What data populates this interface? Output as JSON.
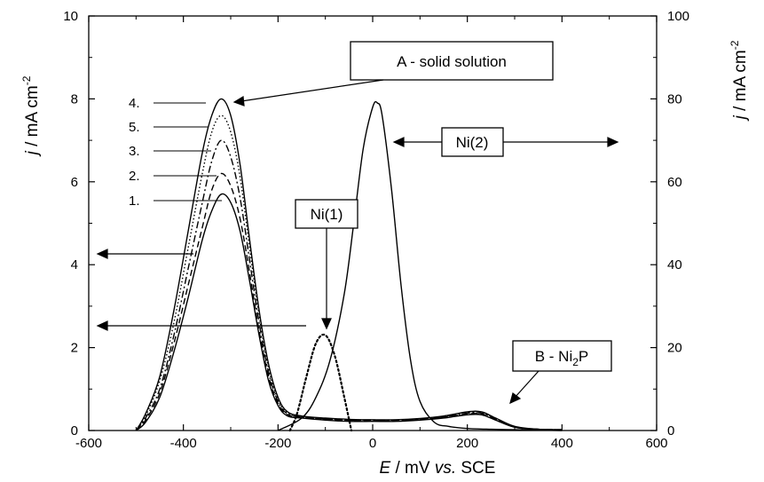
{
  "chart_data": {
    "type": "line",
    "xlabel_parts": [
      "E",
      " / mV ",
      "vs.",
      " SCE"
    ],
    "ylabel_left": {
      "main": "j / mA cm",
      "sup": "-2"
    },
    "ylabel_right": {
      "main": "j / mA cm",
      "sup": "-2"
    },
    "xlim": [
      -600,
      600
    ],
    "ylim_left": [
      0,
      10
    ],
    "ylim_right": [
      0,
      100
    ],
    "x_ticks": [
      "-600",
      "-400",
      "-200",
      "0",
      "200",
      "400",
      "600"
    ],
    "y_left_ticks": [
      "0",
      "2",
      "4",
      "6",
      "8",
      "10"
    ],
    "y_right_ticks": [
      "0",
      "20",
      "40",
      "60",
      "80",
      "100"
    ],
    "grid": false,
    "series": [
      {
        "name": "1.",
        "axis": "left",
        "style": "solid",
        "x": [
          -500,
          -480,
          -450,
          -420,
          -390,
          -360,
          -340,
          -320,
          -300,
          -280,
          -260,
          -240,
          -220,
          -200,
          -180,
          -150,
          -100,
          -50,
          0,
          50,
          100,
          150,
          200,
          230,
          260,
          300,
          350,
          400
        ],
        "y": [
          0,
          0.2,
          0.8,
          1.9,
          3.2,
          4.6,
          5.3,
          5.7,
          5.5,
          4.8,
          3.6,
          2.3,
          1.2,
          0.6,
          0.35,
          0.3,
          0.25,
          0.22,
          0.22,
          0.22,
          0.25,
          0.3,
          0.38,
          0.38,
          0.25,
          0.08,
          0.03,
          0.02
        ]
      },
      {
        "name": "2.",
        "axis": "left",
        "style": "dashed",
        "x": [
          -500,
          -480,
          -450,
          -420,
          -390,
          -360,
          -340,
          -320,
          -300,
          -280,
          -260,
          -240,
          -220,
          -200,
          -180,
          -150,
          -100,
          -50,
          0,
          50,
          100,
          150,
          200,
          230,
          260,
          300,
          350,
          400
        ],
        "y": [
          0,
          0.25,
          0.9,
          2.1,
          3.5,
          4.9,
          5.8,
          6.2,
          5.9,
          5.1,
          3.8,
          2.4,
          1.3,
          0.65,
          0.38,
          0.32,
          0.27,
          0.24,
          0.23,
          0.23,
          0.26,
          0.32,
          0.4,
          0.4,
          0.27,
          0.08,
          0.03,
          0.02
        ]
      },
      {
        "name": "3.",
        "axis": "left",
        "style": "dashdot",
        "x": [
          -500,
          -480,
          -450,
          -420,
          -390,
          -360,
          -340,
          -320,
          -300,
          -280,
          -260,
          -240,
          -220,
          -200,
          -180,
          -150,
          -100,
          -50,
          0,
          50,
          100,
          150,
          200,
          230,
          260,
          300,
          350,
          400
        ],
        "y": [
          0,
          0.3,
          1.0,
          2.3,
          3.9,
          5.5,
          6.5,
          7.0,
          6.6,
          5.6,
          4.1,
          2.6,
          1.4,
          0.7,
          0.4,
          0.33,
          0.28,
          0.25,
          0.24,
          0.24,
          0.27,
          0.33,
          0.42,
          0.42,
          0.28,
          0.09,
          0.03,
          0.02
        ]
      },
      {
        "name": "5.",
        "axis": "left",
        "style": "dotted",
        "x": [
          -500,
          -480,
          -450,
          -420,
          -390,
          -360,
          -340,
          -320,
          -300,
          -280,
          -260,
          -240,
          -220,
          -200,
          -180,
          -150,
          -100,
          -50,
          0,
          50,
          100,
          150,
          200,
          230,
          260,
          300,
          350,
          400
        ],
        "y": [
          0,
          0.35,
          1.2,
          2.6,
          4.4,
          6.2,
          7.2,
          7.6,
          7.2,
          6.1,
          4.4,
          2.8,
          1.5,
          0.75,
          0.42,
          0.34,
          0.29,
          0.26,
          0.25,
          0.25,
          0.28,
          0.34,
          0.44,
          0.44,
          0.29,
          0.09,
          0.03,
          0.02
        ]
      },
      {
        "name": "4.",
        "axis": "left",
        "style": "solid",
        "x": [
          -500,
          -480,
          -450,
          -420,
          -390,
          -360,
          -340,
          -320,
          -300,
          -280,
          -260,
          -240,
          -220,
          -200,
          -180,
          -150,
          -100,
          -50,
          0,
          50,
          100,
          150,
          200,
          230,
          260,
          300,
          350,
          400
        ],
        "y": [
          0,
          0.4,
          1.3,
          2.9,
          4.8,
          6.7,
          7.6,
          8.0,
          7.6,
          6.4,
          4.6,
          2.9,
          1.6,
          0.8,
          0.45,
          0.35,
          0.3,
          0.27,
          0.26,
          0.26,
          0.29,
          0.35,
          0.45,
          0.45,
          0.3,
          0.1,
          0.03,
          0.02
        ]
      },
      {
        "name": "Ni(1)",
        "axis": "left",
        "style": "dotted-bold",
        "x": [
          -175,
          -160,
          -140,
          -120,
          -100,
          -80,
          -60,
          -45
        ],
        "y": [
          0,
          0.4,
          1.3,
          2.1,
          2.3,
          1.8,
          0.8,
          0
        ]
      },
      {
        "name": "Ni(2)",
        "axis": "right",
        "style": "solid",
        "x": [
          -200,
          -150,
          -120,
          -90,
          -60,
          -40,
          -20,
          0,
          10,
          20,
          40,
          60,
          80,
          100,
          130,
          160,
          200,
          250,
          300,
          350,
          400
        ],
        "y": [
          0,
          3,
          8,
          17,
          33,
          50,
          68,
          78,
          79,
          76,
          58,
          35,
          17,
          7,
          2,
          1,
          0.5,
          0.3,
          0.2,
          0.1,
          0
        ]
      }
    ]
  },
  "annotations": {
    "solid_solution": "A - solid solution",
    "ni1": "Ni(1)",
    "ni2": "Ni(2)",
    "ni2p": {
      "main": "B - Ni",
      "sub": "2",
      "tail": "P"
    },
    "curve_labels": [
      "4.",
      "5.",
      "3.",
      "2.",
      "1."
    ]
  }
}
